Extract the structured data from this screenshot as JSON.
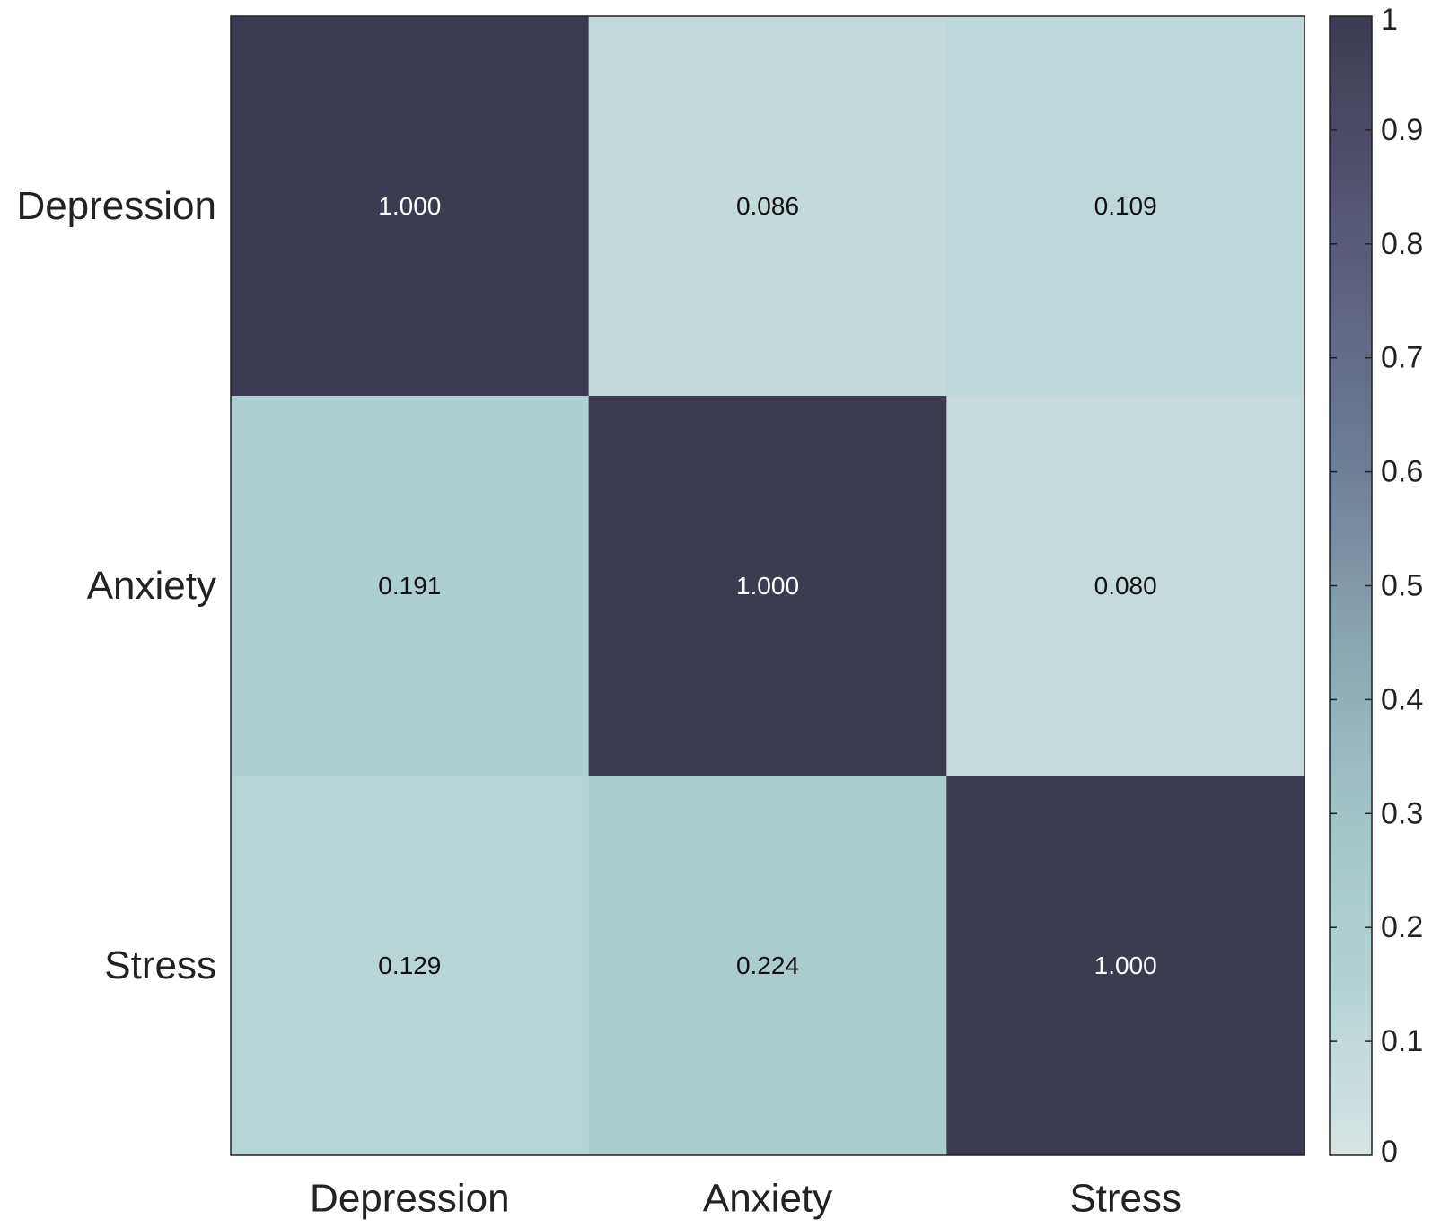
{
  "chart_data": {
    "type": "heatmap",
    "title": "",
    "xlabel": "",
    "ylabel": "",
    "x_categories": [
      "Depression",
      "Anxiety",
      "Stress"
    ],
    "y_categories": [
      "Depression",
      "Anxiety",
      "Stress"
    ],
    "matrix": [
      [
        1.0,
        0.086,
        0.109
      ],
      [
        0.191,
        1.0,
        0.08
      ],
      [
        0.129,
        0.224,
        1.0
      ]
    ],
    "cell_labels": [
      [
        "1.000",
        "0.086",
        "0.109"
      ],
      [
        "0.191",
        "1.000",
        "0.080"
      ],
      [
        "0.129",
        "0.224",
        "1.000"
      ]
    ],
    "colorbar": {
      "range": [
        0,
        1
      ],
      "ticks": [
        0,
        0.1,
        0.2,
        0.3,
        0.4,
        0.5,
        0.6,
        0.7,
        0.8,
        0.9,
        1
      ],
      "tick_labels": [
        "0",
        "0.1",
        "0.2",
        "0.3",
        "0.4",
        "0.5",
        "0.6",
        "0.7",
        "0.8",
        "0.9",
        "1"
      ],
      "colors": [
        "#d9e4e4",
        "#b3d3d3",
        "#a2c4c6",
        "#8aa6b2",
        "#6f7f97",
        "#5a5a7a",
        "#3b3b52"
      ],
      "stops": [
        0,
        0.15,
        0.3,
        0.45,
        0.6,
        0.8,
        1
      ]
    },
    "text_colors": {
      "light": "#ffffff",
      "dark": "#111111"
    }
  }
}
